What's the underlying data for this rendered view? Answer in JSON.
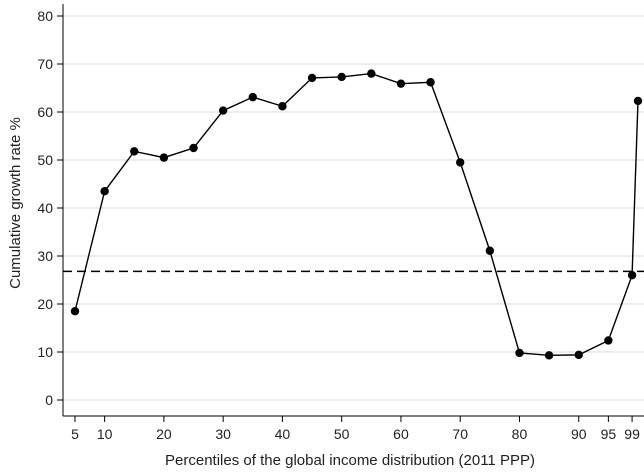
{
  "chart_data": {
    "type": "line",
    "title": "",
    "xlabel": "Percentiles of the global income distribution (2011 PPP)",
    "ylabel": "Cumulative growth rate %",
    "ylim": [
      0,
      80
    ],
    "y_ticks": [
      0,
      10,
      20,
      30,
      40,
      50,
      60,
      70,
      80
    ],
    "x_tick_labels": [
      "5",
      "10",
      "20",
      "30",
      "40",
      "50",
      "60",
      "70",
      "80",
      "90",
      "95",
      "99"
    ],
    "x_tick_positions": [
      5,
      10,
      20,
      30,
      40,
      50,
      60,
      70,
      80,
      90,
      95,
      99
    ],
    "grid": "horizontal",
    "series": [
      {
        "x": [
          5,
          10,
          15,
          20,
          25,
          30,
          35,
          40,
          45,
          50,
          55,
          60,
          65,
          70,
          75,
          80,
          85,
          90,
          95,
          99,
          100
        ],
        "values": [
          18.5,
          43.5,
          51.8,
          50.5,
          52.5,
          60.3,
          63.1,
          61.2,
          67.1,
          67.3,
          68.0,
          65.9,
          66.2,
          49.5,
          31.1,
          9.8,
          9.3,
          9.4,
          12.4,
          26.0,
          62.3
        ]
      }
    ],
    "reference_line": {
      "y": 26.8,
      "style": "dashed"
    },
    "colors": {
      "line": "#000000",
      "grid": "#d9d9d9",
      "axis": "#000000"
    }
  }
}
